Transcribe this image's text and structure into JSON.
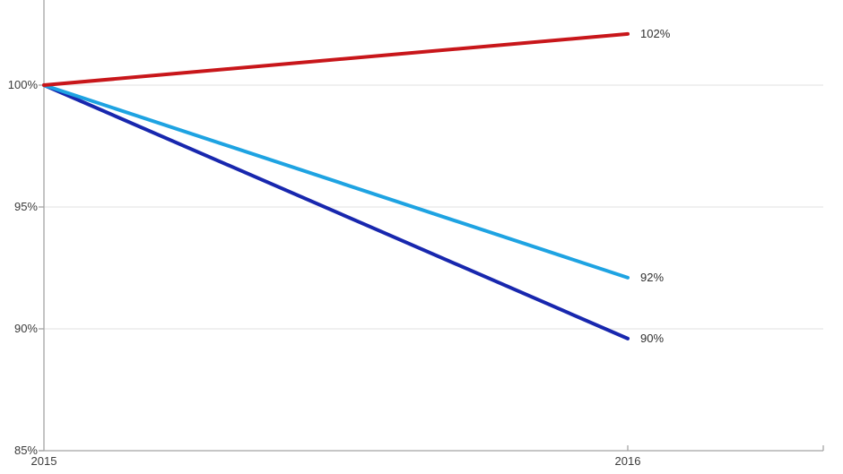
{
  "chart_data": {
    "type": "line",
    "title": "",
    "xlabel": "",
    "ylabel": "",
    "x_axis": {
      "categories": [
        "2015",
        "2016"
      ],
      "note": "axis line extends beyond 2016 with an end tick"
    },
    "y_axis": {
      "ticks": [
        {
          "label": "100%",
          "value": 100
        },
        {
          "label": "95%",
          "value": 95
        },
        {
          "label": "90%",
          "value": 90
        },
        {
          "label": "85%",
          "value": 85
        }
      ],
      "ylim": [
        85,
        103.5
      ],
      "unit": "%"
    },
    "series": [
      {
        "name": "red-line",
        "color": "#c8161a",
        "values": [
          100,
          102.1
        ],
        "end_label": "102%"
      },
      {
        "name": "light-blue-line",
        "color": "#1ea3e2",
        "values": [
          100,
          92.1
        ],
        "end_label": "92%"
      },
      {
        "name": "dark-blue-line",
        "color": "#1827ae",
        "values": [
          100,
          89.6
        ],
        "end_label": "90%"
      }
    ],
    "grid": true,
    "legend": "none"
  },
  "colors": {
    "axis": "#a3a3a3",
    "gridline": "#ececec",
    "tick": "#a3a3a3",
    "text": "#333333",
    "background": "#ffffff"
  }
}
